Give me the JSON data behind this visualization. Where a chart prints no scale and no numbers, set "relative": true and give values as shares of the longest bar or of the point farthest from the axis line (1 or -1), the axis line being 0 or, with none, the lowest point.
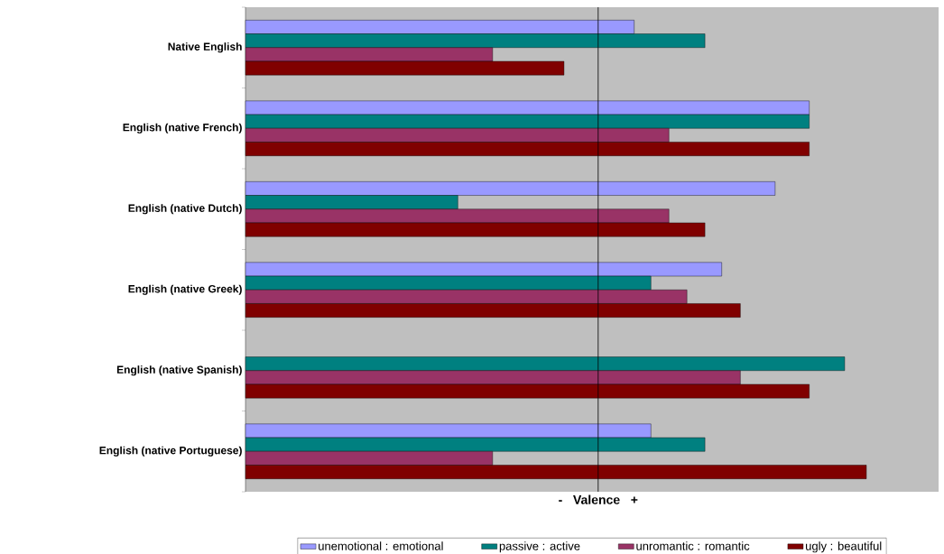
{
  "chart_data": {
    "type": "bar",
    "orientation": "horizontal",
    "relative": true,
    "xlabel": "-   Valence   +",
    "legend": "bottom",
    "categories": [
      "Native English",
      "English (native French)",
      "English (native Dutch)",
      "English (native Greek)",
      "English (native Spanish)",
      "English (native Portuguese)"
    ],
    "series": [
      {
        "name": "unemotional : emotional",
        "color": "#9999ff",
        "values": [
          0.626,
          0.908,
          0.853,
          0.767,
          null,
          0.653
        ]
      },
      {
        "name": "passive : active",
        "color": "#008080",
        "values": [
          0.74,
          0.908,
          0.342,
          0.653,
          0.965,
          0.74
        ]
      },
      {
        "name": "unromantic : romantic",
        "color": "#993366",
        "values": [
          0.398,
          0.682,
          0.682,
          0.711,
          0.797,
          0.398
        ]
      },
      {
        "name": "ugly : beautiful",
        "color": "#800000",
        "values": [
          0.513,
          0.908,
          0.74,
          0.797,
          0.908,
          1.0
        ]
      }
    ],
    "ref_lines": [
      {
        "axis": "x",
        "value": 0.568,
        "color": "#000000"
      }
    ]
  }
}
